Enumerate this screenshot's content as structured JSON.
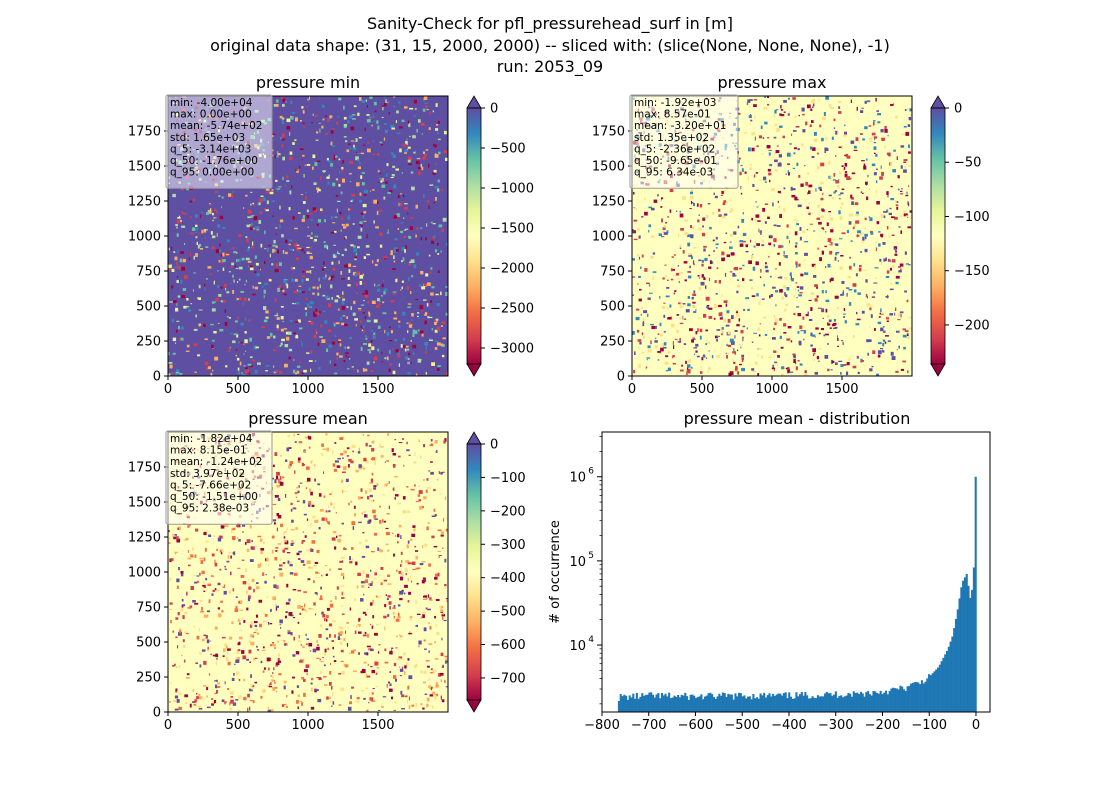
{
  "figure": {
    "suptitle_lines": [
      "Sanity-Check for pfl_pressurehead_surf in [m]",
      "original data shape: (31, 15, 2000, 2000) -- sliced with: (slice(None, None, None), -1)",
      "run: 2053_09"
    ]
  },
  "colors": {
    "spectral": [
      "#9e0142",
      "#d53e4f",
      "#f46d43",
      "#fdae61",
      "#fee08b",
      "#ffffbf",
      "#e6f598",
      "#abdda4",
      "#66c2a5",
      "#3288bd",
      "#5e4fa2"
    ],
    "hist_bar": "#1f77b4"
  },
  "chart_data": [
    {
      "type": "heatmap",
      "id": "min",
      "title": "pressure min",
      "xlim": [
        0,
        2000
      ],
      "ylim": [
        0,
        2000
      ],
      "xticks": [
        "0",
        "500",
        "1000",
        "1500"
      ],
      "yticks": [
        "0",
        "250",
        "500",
        "750",
        "1000",
        "1250",
        "1500",
        "1750"
      ],
      "colorbar": {
        "min": -3200,
        "max": 0,
        "ticks": [
          "0",
          "−500",
          "−1000",
          "−1500",
          "−2000",
          "−2500",
          "−3000"
        ],
        "tick_values": [
          0,
          -500,
          -1000,
          -1500,
          -2000,
          -2500,
          -3000
        ],
        "extend": "both"
      },
      "stats": [
        "min: -4.00e+04",
        "max: 0.00e+00",
        "mean: -5.74e+02",
        "std: 1.65e+03",
        "q_5: -3.14e+03",
        "q_50: -1.76e+00",
        "q_95: 0.00e+00"
      ]
    },
    {
      "type": "heatmap",
      "id": "max",
      "title": "pressure max",
      "xlim": [
        0,
        2000
      ],
      "ylim": [
        0,
        2000
      ],
      "xticks": [
        "0",
        "500",
        "1000",
        "1500"
      ],
      "yticks": [
        "0",
        "250",
        "500",
        "750",
        "1000",
        "1250",
        "1500",
        "1750"
      ],
      "colorbar": {
        "min": -236,
        "max": 0,
        "ticks": [
          "0",
          "−50",
          "−100",
          "−150",
          "−200"
        ],
        "tick_values": [
          0,
          -50,
          -100,
          -150,
          -200
        ],
        "extend": "both"
      },
      "stats": [
        "min: -1.92e+03",
        "max: 8.57e-01",
        "mean: -3.20e+01",
        "std: 1.35e+02",
        "q_5: -2.36e+02",
        "q_50: -9.65e-01",
        "q_95: 6.34e-03"
      ]
    },
    {
      "type": "heatmap",
      "id": "mean",
      "title": "pressure mean",
      "xlim": [
        0,
        2000
      ],
      "ylim": [
        0,
        2000
      ],
      "xticks": [
        "0",
        "500",
        "1000",
        "1500"
      ],
      "yticks": [
        "0",
        "250",
        "500",
        "750",
        "1000",
        "1250",
        "1500",
        "1750"
      ],
      "colorbar": {
        "min": -766,
        "max": 0,
        "ticks": [
          "0",
          "−100",
          "−200",
          "−300",
          "−400",
          "−500",
          "−600",
          "−700"
        ],
        "tick_values": [
          0,
          -100,
          -200,
          -300,
          -400,
          -500,
          -600,
          -700
        ],
        "extend": "both"
      },
      "stats": [
        "min: -1.82e+04",
        "max: 8.15e-01",
        "mean: -1.24e+02",
        "std: 3.97e+02",
        "q_5: -7.66e+02",
        "q_50: -1.51e+00",
        "q_95: 2.38e-03"
      ]
    },
    {
      "type": "bar",
      "id": "hist",
      "title": "pressure mean - distribution",
      "ylabel": "# of occurrence",
      "yscale": "log",
      "xlim": [
        -800,
        30
      ],
      "ylim": [
        1600,
        3400000
      ],
      "xticks": [
        "−800",
        "−700",
        "−600",
        "−500",
        "−400",
        "−300",
        "−200",
        "−100",
        "0"
      ],
      "xtick_values": [
        -800,
        -700,
        -600,
        -500,
        -400,
        -300,
        -200,
        -100,
        0
      ],
      "yticks": [
        "10",
        "10",
        "10"
      ],
      "ytick_exponents": [
        "4",
        "5",
        "6"
      ],
      "ytick_values": [
        10000,
        100000,
        1000000
      ],
      "bins": {
        "start": -766,
        "end": 1,
        "count": 200
      },
      "values_note_points": [
        [
          -766,
          2400
        ],
        [
          -700,
          2500
        ],
        [
          -600,
          2450
        ],
        [
          -500,
          2500
        ],
        [
          -400,
          2500
        ],
        [
          -300,
          2600
        ],
        [
          -250,
          2650
        ],
        [
          -200,
          2800
        ],
        [
          -150,
          3100
        ],
        [
          -120,
          3600
        ],
        [
          -100,
          4200
        ],
        [
          -80,
          5500
        ],
        [
          -60,
          9000
        ],
        [
          -50,
          13000
        ],
        [
          -40,
          25000
        ],
        [
          -30,
          55000
        ],
        [
          -20,
          70000
        ],
        [
          -12,
          35000
        ],
        [
          -6,
          55000
        ],
        [
          -3,
          150000
        ],
        [
          0,
          2300000
        ]
      ]
    }
  ]
}
